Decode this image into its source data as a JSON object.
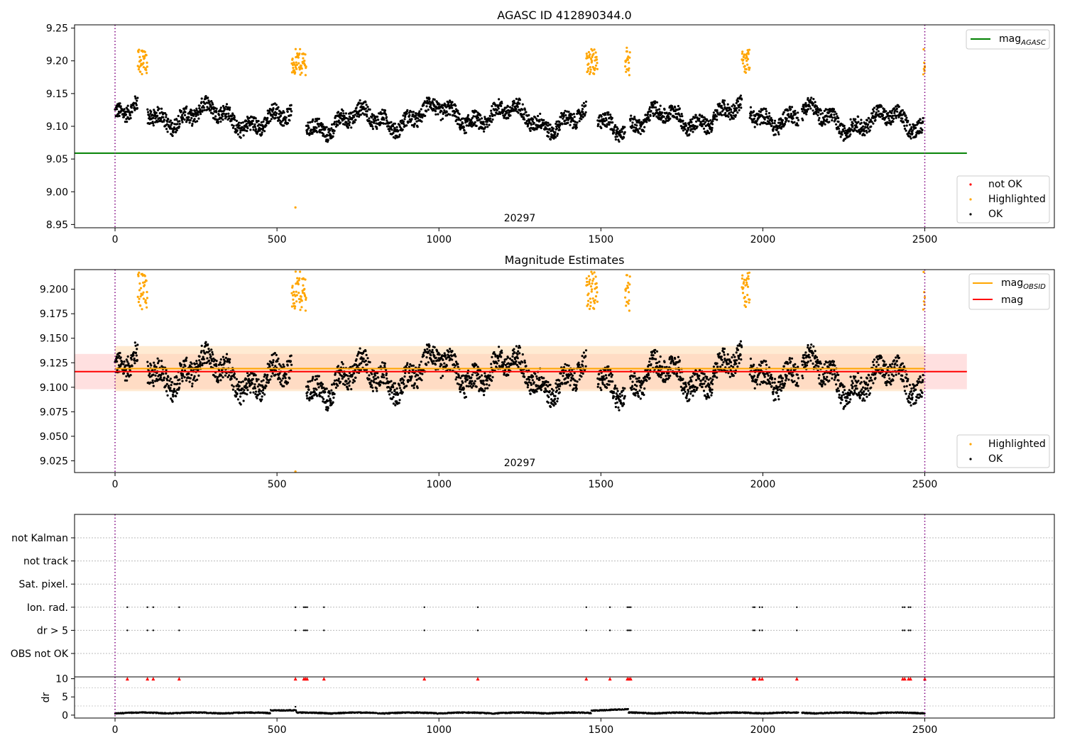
{
  "chart_data": [
    {
      "type": "scatter",
      "title": "AGASC ID 412890344.0",
      "xlim": [
        -125,
        2900
      ],
      "ylim": [
        8.945,
        9.255
      ],
      "xticks": [
        0,
        500,
        1000,
        1500,
        2000,
        2500
      ],
      "yticks": [
        8.95,
        9.0,
        9.05,
        9.1,
        9.15,
        9.2,
        9.25
      ],
      "ytick_labels": [
        "8.95",
        "9.00",
        "9.05",
        "9.10",
        "9.15",
        "9.20",
        "9.25"
      ],
      "obs_boundaries": [
        0,
        2500
      ],
      "obs_label": {
        "text": "20297",
        "x": 1250
      },
      "lines": [
        {
          "name": "mag",
          "subscript": "AGASC",
          "y": 9.059,
          "x": [
            -125,
            2630
          ],
          "color": "#008000"
        }
      ],
      "series": [
        {
          "name": "not OK",
          "color": "#ff0000",
          "points": []
        },
        {
          "name": "Highlighted",
          "color": "#ffa500",
          "points": [
            [
              78,
              9.2
            ],
            [
              558,
              9.19
            ],
            [
              1472,
              9.2
            ],
            [
              1580,
              9.22
            ],
            [
              1950,
              9.2
            ],
            [
              2500,
              9.19
            ],
            [
              557,
              8.976
            ]
          ]
        },
        {
          "name": "OK",
          "color": "#000000",
          "points": []
        }
      ],
      "legend": {
        "lines_position": "top-right",
        "points_position": "bottom-right"
      }
    },
    {
      "type": "scatter",
      "title": "Magnitude Estimates",
      "xlim": [
        -125,
        2900
      ],
      "ylim": [
        9.013,
        9.22
      ],
      "xticks": [
        0,
        500,
        1000,
        1500,
        2000,
        2500
      ],
      "yticks": [
        9.025,
        9.05,
        9.075,
        9.1,
        9.125,
        9.15,
        9.175,
        9.2
      ],
      "ytick_labels": [
        "9.025",
        "9.050",
        "9.075",
        "9.100",
        "9.125",
        "9.150",
        "9.175",
        "9.200"
      ],
      "obs_boundaries": [
        0,
        2500
      ],
      "obs_label": {
        "text": "20297",
        "x": 1250
      },
      "bands": [
        {
          "y0": 9.098,
          "y1": 9.134,
          "x": [
            -125,
            2630
          ],
          "color": "#ff9999",
          "opacity": 0.3
        },
        {
          "y0": 9.096,
          "y1": 9.142,
          "x": [
            0,
            2500
          ],
          "color": "#ffd8a8",
          "opacity": 0.5
        }
      ],
      "lines": [
        {
          "name": "mag",
          "subscript": "OBSID",
          "y": 9.119,
          "x": [
            0,
            2500
          ],
          "color": "#ffa500"
        },
        {
          "name": "mag",
          "subscript": "",
          "y": 9.116,
          "x": [
            -125,
            2630
          ],
          "color": "#ff0000"
        }
      ],
      "series": [
        {
          "name": "Highlighted",
          "color": "#ffa500",
          "points": [
            [
              557,
              9.014
            ]
          ]
        },
        {
          "name": "OK",
          "color": "#000000",
          "points": []
        }
      ],
      "legend": {
        "lines_position": "top-right",
        "points_position": "bottom-right"
      }
    },
    {
      "type": "scatter",
      "title": "",
      "xlim": [
        -125,
        2900
      ],
      "xticks": [
        0,
        500,
        1000,
        1500,
        2000,
        2500
      ],
      "obs_boundaries": [
        0,
        2500
      ],
      "flag_rows": [
        "not Kalman",
        "not track",
        "Sat. pixel.",
        "Ion. rad.",
        "dr > 5",
        "OBS not OK"
      ],
      "flag_points_x": [
        38,
        100,
        118,
        198,
        557,
        583,
        588,
        593,
        645,
        955,
        1120,
        1455,
        1528,
        1582,
        1587,
        1592,
        1970,
        1975,
        1990,
        1998,
        2105,
        2432,
        2438,
        2450,
        2456
      ],
      "flagged_rows": [
        "Ion. rad.",
        "dr > 5"
      ],
      "flag_marker_color": "#000000"
    },
    {
      "type": "scatter",
      "title": "",
      "ylabel": "dr",
      "xlim": [
        -125,
        2900
      ],
      "ylim": [
        -0.8,
        10.5
      ],
      "xticks": [
        0,
        500,
        1000,
        1500,
        2000,
        2500
      ],
      "yticks": [
        0,
        5,
        10
      ],
      "ytick_labels": [
        "0",
        "5",
        "10"
      ],
      "obs_boundaries": [
        0,
        2500
      ],
      "clipped_marker": {
        "y": 10,
        "color": "#ff0000",
        "x": [
          38,
          100,
          118,
          198,
          557,
          583,
          588,
          593,
          645,
          955,
          1120,
          1455,
          1528,
          1582,
          1587,
          1592,
          1970,
          1975,
          1990,
          1998,
          2105,
          2432,
          2438,
          2450,
          2456,
          2500
        ]
      },
      "series": [
        {
          "name": "dr",
          "color": "#000000",
          "points": []
        }
      ]
    }
  ]
}
